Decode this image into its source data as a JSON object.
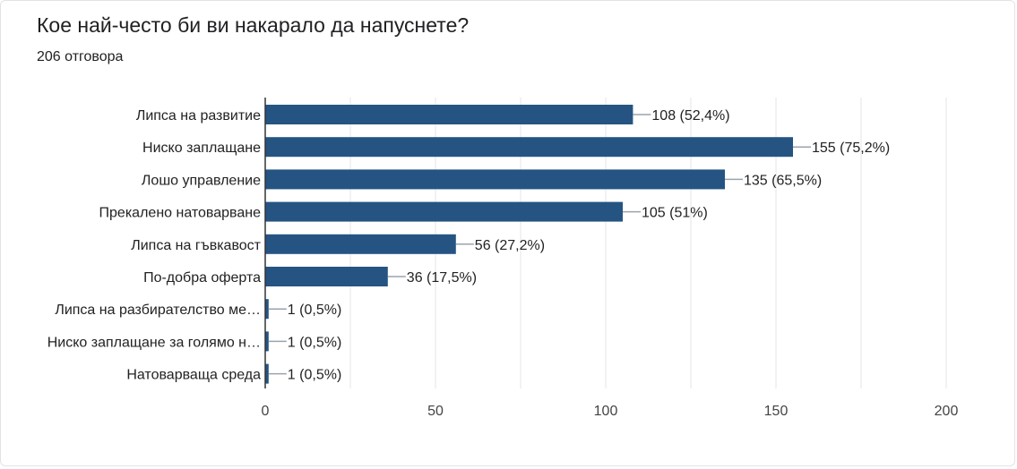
{
  "header": {
    "title": "Кое най-често би ви накарало да напуснете?",
    "subtitle": "206 отговора"
  },
  "colors": {
    "bar": "#255483",
    "grid": "#e6e6e6",
    "axis": "#333333",
    "connector": "#9aa3ad"
  },
  "chart_data": {
    "type": "bar",
    "orientation": "horizontal",
    "categories": [
      "Липса на развитие",
      "Ниско заплащане",
      "Лошо управление",
      "Прекалено натоварване",
      "Липса на гъвкавост",
      "По-добра оферта",
      "Липса на разбирателство ме…",
      "Ниско заплащане за голямо н…",
      "Натоварваща среда"
    ],
    "values": [
      108,
      155,
      135,
      105,
      56,
      36,
      1,
      1,
      1
    ],
    "data_labels": [
      "108 (52,4%)",
      "155 (75,2%)",
      "135 (65,5%)",
      "105 (51%)",
      "56 (27,2%)",
      "36 (17,5%)",
      "1 (0,5%)",
      "1 (0,5%)",
      "1 (0,5%)"
    ],
    "xlim": [
      0,
      200
    ],
    "xticks": [
      0,
      50,
      100,
      150,
      200
    ],
    "grid": true
  }
}
